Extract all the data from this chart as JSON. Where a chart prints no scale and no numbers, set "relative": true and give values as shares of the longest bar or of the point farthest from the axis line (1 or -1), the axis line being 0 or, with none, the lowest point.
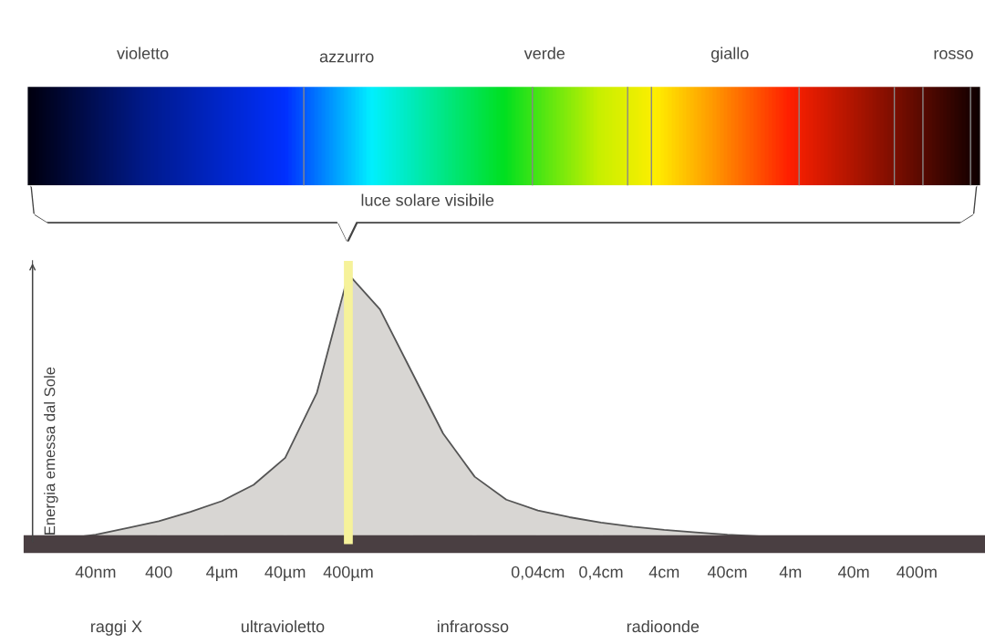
{
  "chart_data": {
    "type": "area",
    "relative": true,
    "ylabel": "Energia emessa dal Sole",
    "categories": [
      null,
      null,
      "40nm",
      null,
      "400",
      null,
      "4µm",
      null,
      "40µm",
      null,
      "400µm",
      null,
      null,
      null,
      null,
      null,
      "0,04cm",
      null,
      "0,4cm",
      null,
      "4cm",
      null,
      "40cm",
      null,
      "4m",
      null,
      "40m",
      null,
      "400m",
      null,
      null
    ],
    "series": [
      {
        "color": "#d8d6d3",
        "values": [
          0.005,
          0.02,
          0.035,
          0.06,
          0.085,
          0.12,
          0.16,
          0.22,
          0.32,
          0.56,
          1,
          0.87,
          0.64,
          0.41,
          0.25,
          0.165,
          0.125,
          0.1,
          0.08,
          0.065,
          0.053,
          0.044,
          0.035,
          0.029,
          0.024,
          0.02,
          0.017,
          0.014,
          0.012,
          0.011,
          0.01
        ]
      }
    ],
    "ref_lines": [
      {
        "axis": "x",
        "value": "400µm",
        "color": "#f6f29a"
      }
    ],
    "annotations": [
      "raggi X",
      "ultravioletto",
      "infrarosso",
      "radioonde",
      "violetto",
      "azzurro",
      "verde",
      "giallo",
      "rosso",
      "luce solare visibile"
    ],
    "grid": false
  }
}
